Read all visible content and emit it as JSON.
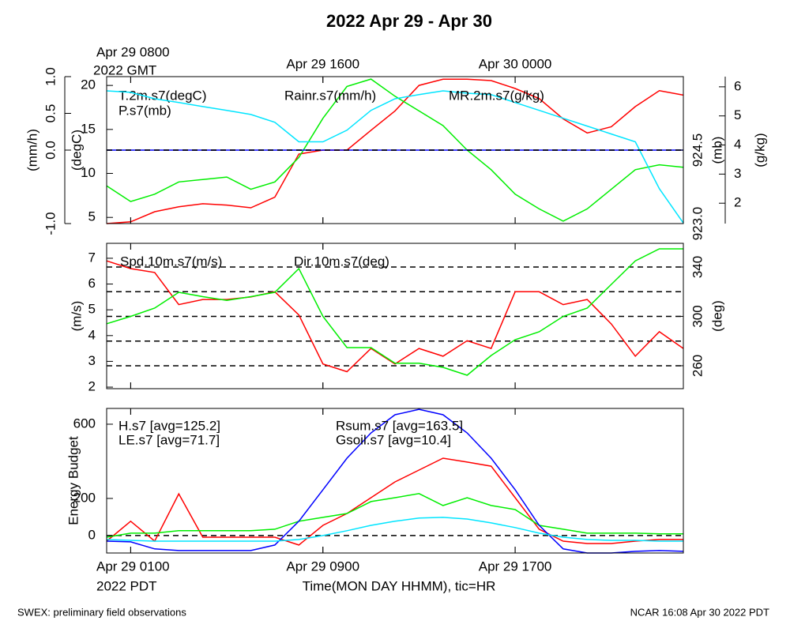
{
  "title": "2022 Apr 29 - Apr 30",
  "footer_left": "SWEX: preliminary field observations",
  "footer_right": "NCAR 16:08 Apr 30 2022 PDT",
  "chart_data": [
    {
      "type": "line",
      "x": [
        0,
        1,
        2,
        3,
        4,
        5,
        6,
        7,
        8,
        9,
        10,
        11,
        12,
        13,
        14,
        15,
        16,
        17,
        18,
        19,
        20,
        21,
        22,
        23,
        24
      ],
      "xlim": [
        0,
        24
      ],
      "xticks": [
        {
          "value": 1,
          "label": "Apr 29 0800"
        },
        {
          "value": 9,
          "label": "Apr 29 1600"
        },
        {
          "value": 17,
          "label": "Apr 30 0000"
        }
      ],
      "x_note": "2022 GMT",
      "axes": [
        {
          "label": "(mm/h)",
          "ylim": [
            -1,
            1
          ],
          "yticks": [
            {
              "value": -1,
              "label": "-1.0"
            },
            {
              "value": 0,
              "label": "0.0"
            },
            0.5,
            {
              "value": 1,
              "label": "1.0"
            }
          ]
        },
        {
          "label": "(degC)",
          "ylim": [
            4.3,
            21
          ],
          "yticks": [
            5,
            10,
            15,
            20
          ]
        },
        {
          "label": "(mb)",
          "ylim": [
            923,
            926
          ],
          "yticks": [
            {
              "value": 923,
              "label": "923.0"
            },
            924.5
          ]
        },
        {
          "label": "(g/kg)",
          "ylim": [
            1.3,
            6.35
          ],
          "yticks": [
            2,
            3,
            4,
            5,
            6
          ]
        }
      ],
      "grid": {
        "axis": 0,
        "values": [
          0
        ]
      },
      "series": [
        {
          "name": "T.2m.s7(degC)",
          "color": "#ff0000",
          "axis": 1,
          "values": [
            4.3,
            4.5,
            5.65,
            6.2,
            6.55,
            6.4,
            6.1,
            7.3,
            12.2,
            12.65,
            12.65,
            14.9,
            17.1,
            20.0,
            20.7,
            20.7,
            20.55,
            19.65,
            18.5,
            16.2,
            14.6,
            15.3,
            17.6,
            19.4,
            18.9
          ]
        },
        {
          "name": "P.s7(mb)",
          "color": "#00ee00",
          "axis": 2,
          "values": [
            923.77,
            923.45,
            923.6,
            923.85,
            923.9,
            923.95,
            923.7,
            923.85,
            924.35,
            925.15,
            925.8,
            925.95,
            925.6,
            925.3,
            925.0,
            924.5,
            924.1,
            923.6,
            923.3,
            923.05,
            923.3,
            923.7,
            924.1,
            924.2,
            924.15
          ]
        },
        {
          "name": "Rainr.s7(mm/h)",
          "color": "#0000ff",
          "axis": 0,
          "values": [
            0,
            0,
            0,
            0,
            0,
            0,
            0,
            0,
            0,
            0,
            0,
            0,
            0,
            0,
            0,
            0,
            0,
            0,
            0,
            0,
            0,
            0,
            0,
            0,
            0
          ]
        },
        {
          "name": "MR.2m.s7(g/kg)",
          "color": "#00e5ff",
          "axis": 3,
          "values": [
            5.86,
            5.81,
            5.59,
            5.46,
            5.32,
            5.19,
            5.05,
            4.78,
            4.11,
            4.11,
            4.51,
            5.19,
            5.59,
            5.73,
            5.86,
            5.78,
            5.73,
            5.46,
            5.19,
            4.92,
            4.65,
            4.38,
            4.11,
            2.5,
            1.32
          ]
        }
      ]
    },
    {
      "type": "line",
      "x": [
        0,
        1,
        2,
        3,
        4,
        5,
        6,
        7,
        8,
        9,
        10,
        11,
        12,
        13,
        14,
        15,
        16,
        17,
        18,
        19,
        20,
        21,
        22,
        23,
        24
      ],
      "xlim": [
        0,
        24
      ],
      "axes": [
        {
          "label": "(m/s)",
          "ylim": [
            1.94,
            7.58
          ],
          "yticks": [
            2,
            3,
            4,
            5,
            6,
            7
          ]
        },
        {
          "label": "(deg)",
          "ylim": [
            241.4,
            359.2
          ],
          "yticks": [
            260,
            300,
            340
          ]
        }
      ],
      "grid": {
        "axis": 1,
        "values": [
          260,
          280,
          300,
          320,
          340
        ]
      },
      "series": [
        {
          "name": "Spd.10m.s7(m/s)",
          "color": "#ff0000",
          "axis": 0,
          "values": [
            6.9,
            6.6,
            6.45,
            5.2,
            5.4,
            5.4,
            5.5,
            5.7,
            4.8,
            2.9,
            2.6,
            3.5,
            2.9,
            3.5,
            3.2,
            3.8,
            3.5,
            5.7,
            5.7,
            5.2,
            5.4,
            4.45,
            3.2,
            4.15,
            3.5
          ]
        },
        {
          "name": "Dir.10m.s7(deg)",
          "color": "#00ee00",
          "axis": 1,
          "values": [
            294,
            300,
            306.7,
            319.5,
            316,
            313,
            316,
            319.5,
            338.7,
            300,
            274.7,
            274.7,
            262,
            262,
            258.7,
            252.3,
            268.3,
            281.1,
            287.5,
            300,
            306.7,
            325.9,
            345,
            354.7,
            354.7
          ]
        }
      ]
    },
    {
      "type": "line",
      "x": [
        0,
        1,
        2,
        3,
        4,
        5,
        6,
        7,
        8,
        9,
        10,
        11,
        12,
        13,
        14,
        15,
        16,
        17,
        18,
        19,
        20,
        21,
        22,
        23,
        24
      ],
      "xlim": [
        0,
        24
      ],
      "xticks": [
        {
          "value": 1,
          "label": "Apr 29 0100"
        },
        {
          "value": 9,
          "label": "Apr 29 0900"
        },
        {
          "value": 17,
          "label": "Apr 29 1700"
        }
      ],
      "x_note": "2022 PDT",
      "xlabel": "Time(MON DAY HHMM), tic=HR",
      "axes": [
        {
          "label": "Energy Budget",
          "ylim": [
            -94,
            685
          ],
          "yticks": [
            0,
            200,
            600
          ]
        }
      ],
      "grid": {
        "axis": 0,
        "values": [
          0
        ]
      },
      "series": [
        {
          "name": "H.s7 [avg=125.2]",
          "color": "#ff0000",
          "axis": 0,
          "values": [
            -30,
            77,
            -30,
            225,
            -9,
            -9,
            -9,
            -9,
            -51,
            55,
            119,
            204,
            289,
            353,
            417,
            396,
            374,
            204,
            34,
            -30,
            -43,
            -43,
            -30,
            -21,
            -21
          ]
        },
        {
          "name": "LE.s7 [avg=71.7]",
          "color": "#00ee00",
          "axis": 0,
          "values": [
            -9,
            13,
            13,
            26,
            26,
            26,
            26,
            34,
            77,
            98,
            119,
            183,
            204,
            226,
            162,
            204,
            162,
            140,
            55,
            34,
            13,
            13,
            13,
            9,
            9
          ]
        },
        {
          "name": "Rsum.s7 [avg=163.5]",
          "color": "#0000ff",
          "axis": 0,
          "values": [
            -30,
            -34,
            -72,
            -81,
            -81,
            -81,
            -81,
            -51,
            77,
            247,
            417,
            553,
            651,
            680,
            651,
            553,
            417,
            247,
            55,
            -72,
            -94,
            -94,
            -85,
            -81,
            -85
          ]
        },
        {
          "name": "Gsoil.s7 [avg=10.4]",
          "color": "#00e5ff",
          "axis": 0,
          "values": [
            -21,
            -26,
            -30,
            -30,
            -30,
            -30,
            -30,
            -30,
            -21,
            0,
            26,
            55,
            77,
            94,
            98,
            89,
            68,
            43,
            13,
            -9,
            -21,
            -26,
            -26,
            -30,
            -30
          ]
        }
      ]
    }
  ]
}
